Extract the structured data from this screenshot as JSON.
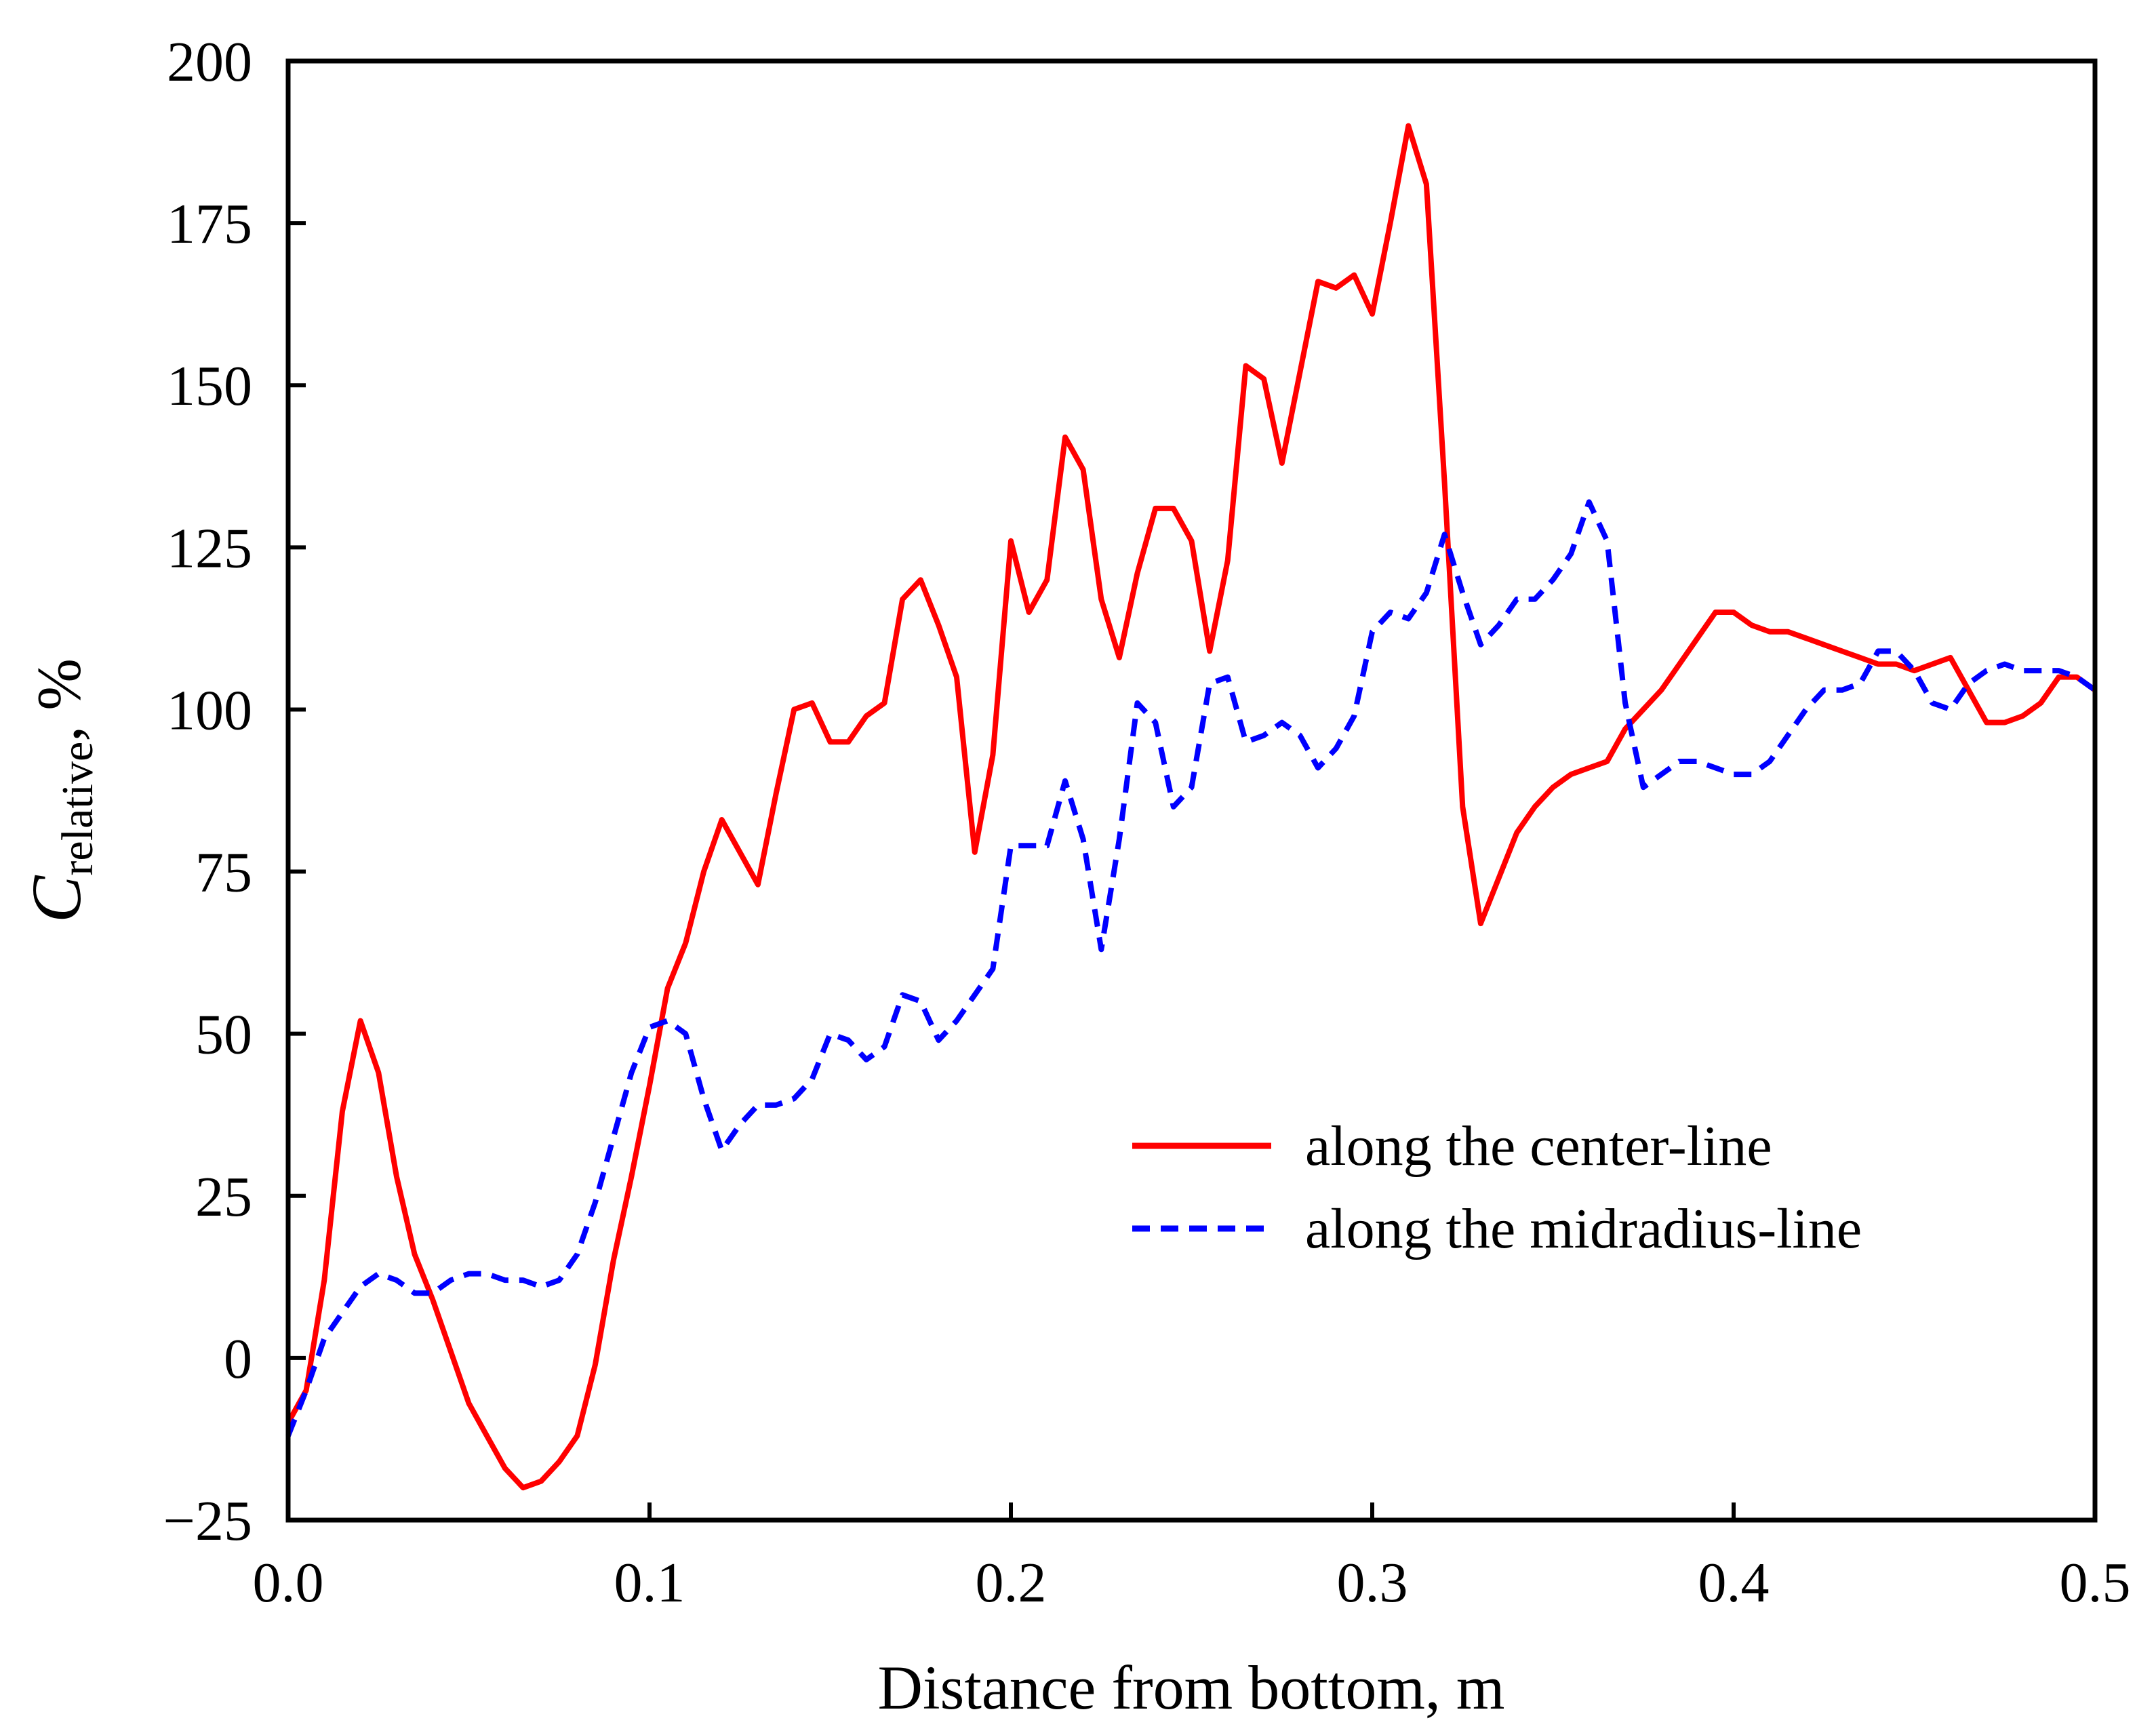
{
  "chart_data": {
    "type": "line",
    "title": "",
    "xlabel": "Distance from bottom, m",
    "ylabel": {
      "main": "C",
      "subscript": "relative",
      "unit": ", %"
    },
    "xlim": [
      0,
      0.5
    ],
    "ylim": [
      -25,
      200
    ],
    "xticks": [
      0.0,
      0.1,
      0.2,
      0.3,
      0.4,
      0.5
    ],
    "xtick_labels": [
      "0.0",
      "0.1",
      "0.2",
      "0.3",
      "0.4",
      "0.5"
    ],
    "yticks": [
      -25,
      0,
      25,
      50,
      75,
      100,
      125,
      150,
      175,
      200
    ],
    "ytick_labels": [
      "−25",
      "0",
      "25",
      "50",
      "75",
      "100",
      "125",
      "150",
      "175",
      "200"
    ],
    "grid": false,
    "legend_position": "center-right",
    "series": [
      {
        "name": "along the center-line",
        "color": "#ff0000",
        "style": "solid",
        "x": [
          0.0,
          0.005,
          0.01,
          0.015,
          0.02,
          0.025,
          0.03,
          0.035,
          0.04,
          0.045,
          0.05,
          0.055,
          0.06,
          0.065,
          0.07,
          0.075,
          0.08,
          0.085,
          0.09,
          0.095,
          0.1,
          0.105,
          0.11,
          0.115,
          0.12,
          0.125,
          0.13,
          0.135,
          0.14,
          0.145,
          0.15,
          0.155,
          0.16,
          0.165,
          0.17,
          0.175,
          0.18,
          0.185,
          0.19,
          0.195,
          0.2,
          0.205,
          0.21,
          0.215,
          0.22,
          0.225,
          0.23,
          0.235,
          0.24,
          0.245,
          0.25,
          0.255,
          0.26,
          0.265,
          0.27,
          0.275,
          0.28,
          0.285,
          0.29,
          0.295,
          0.3,
          0.305,
          0.31,
          0.315,
          0.32,
          0.325,
          0.33,
          0.335,
          0.34,
          0.345,
          0.35,
          0.355,
          0.36,
          0.365,
          0.37,
          0.375,
          0.38,
          0.385,
          0.39,
          0.395,
          0.4,
          0.405,
          0.41,
          0.415,
          0.42,
          0.425,
          0.43,
          0.435,
          0.44,
          0.445,
          0.45,
          0.455,
          0.46,
          0.465,
          0.47,
          0.475,
          0.48,
          0.485,
          0.49,
          0.495,
          0.5
        ],
        "y": [
          -10,
          -5,
          12,
          38,
          52,
          44,
          28,
          16,
          9,
          1,
          -7,
          -12,
          -17,
          -20,
          -19,
          -16,
          -12,
          -1,
          15,
          28,
          42,
          57,
          64,
          75,
          83,
          78,
          73,
          87,
          100,
          101,
          95,
          95,
          99,
          101,
          117,
          120,
          113,
          105,
          78,
          93,
          126,
          115,
          120,
          142,
          137,
          117,
          108,
          121,
          131,
          131,
          126,
          109,
          123,
          153,
          151,
          138,
          152,
          166,
          165,
          167,
          161,
          175,
          190,
          181,
          135,
          85,
          67,
          74,
          81,
          85,
          88,
          90,
          91,
          92,
          97,
          100,
          103,
          107,
          111,
          115,
          115,
          113,
          112,
          112,
          111,
          110,
          109,
          108,
          107,
          107,
          106,
          107,
          108,
          103,
          98,
          98,
          99,
          101,
          105,
          105,
          103
        ]
      },
      {
        "name": "along the midradius-line",
        "color": "#0000ff",
        "style": "dashed",
        "x": [
          0.0,
          0.005,
          0.01,
          0.015,
          0.02,
          0.025,
          0.03,
          0.035,
          0.04,
          0.045,
          0.05,
          0.055,
          0.06,
          0.065,
          0.07,
          0.075,
          0.08,
          0.085,
          0.09,
          0.095,
          0.1,
          0.105,
          0.11,
          0.115,
          0.12,
          0.125,
          0.13,
          0.135,
          0.14,
          0.145,
          0.15,
          0.155,
          0.16,
          0.165,
          0.17,
          0.175,
          0.18,
          0.185,
          0.19,
          0.195,
          0.2,
          0.205,
          0.21,
          0.215,
          0.22,
          0.225,
          0.23,
          0.235,
          0.24,
          0.245,
          0.25,
          0.255,
          0.26,
          0.265,
          0.27,
          0.275,
          0.28,
          0.285,
          0.29,
          0.295,
          0.3,
          0.305,
          0.31,
          0.315,
          0.32,
          0.325,
          0.33,
          0.335,
          0.34,
          0.345,
          0.35,
          0.355,
          0.36,
          0.365,
          0.37,
          0.375,
          0.38,
          0.385,
          0.39,
          0.395,
          0.4,
          0.405,
          0.41,
          0.415,
          0.42,
          0.425,
          0.43,
          0.435,
          0.44,
          0.445,
          0.45,
          0.455,
          0.46,
          0.465,
          0.47,
          0.475,
          0.48,
          0.485,
          0.49,
          0.495,
          0.5
        ],
        "y": [
          -12,
          -5,
          3,
          7,
          11,
          13,
          12,
          10,
          10,
          12,
          13,
          13,
          12,
          12,
          11,
          12,
          16,
          24,
          34,
          44,
          51,
          52,
          50,
          40,
          32,
          36,
          39,
          39,
          40,
          43,
          50,
          49,
          46,
          48,
          56,
          55,
          49,
          52,
          56,
          60,
          79,
          79,
          79,
          89,
          80,
          63,
          80,
          101,
          98,
          85,
          88,
          104,
          105,
          95,
          96,
          98,
          96,
          91,
          94,
          99,
          112,
          115,
          114,
          118,
          127,
          118,
          110,
          113,
          117,
          117,
          120,
          124,
          132,
          126,
          101,
          88,
          90,
          92,
          92,
          91,
          90,
          90,
          92,
          96,
          100,
          103,
          103,
          104,
          109,
          109,
          106,
          101,
          100,
          104,
          106,
          107,
          106,
          106,
          106,
          105,
          103
        ]
      }
    ]
  }
}
